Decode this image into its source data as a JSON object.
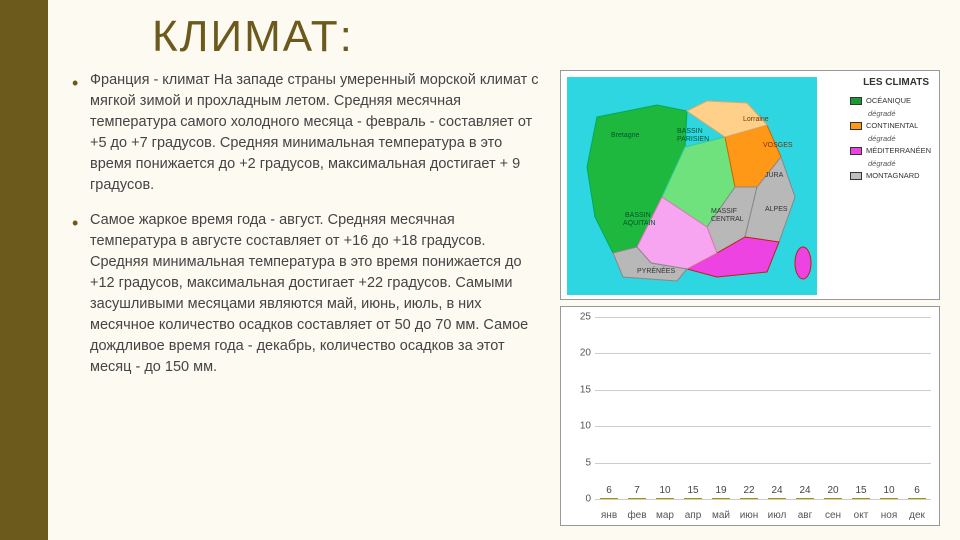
{
  "title": "КЛИМАТ:",
  "bullets": [
    "Франция - климат На западе страны умеренный морской климат с мягкой зимой и прохладным летом. Средняя месячная температура самого холодного месяца - февраль - составляет от +5 до +7 градусов. Средняя минимальная температура в это время понижается до +2 градусов, максимальная достигает + 9 градусов.",
    "Самое жаркое время года - август. Средняя месячная температура в августе составляет от +16 до +18 градусов. Средняя минимальная температура в это время понижается до +12 градусов, максимальная достигает +22 градусов. Самыми засушливыми месяцами являются май, июнь, июль, в них месячное количество осадков составляет от 50 до 70 мм. Самое дождливое время года - декабрь, количество осадков за этот месяц - до 150 мм."
  ],
  "map": {
    "title": "LES CLIMATS",
    "legend": [
      {
        "color": "#1a9933",
        "label": "OCÉANIQUE",
        "sub": "dégradé"
      },
      {
        "color": "#ff9817",
        "label": "CONTINENTAL",
        "sub": "dégradé"
      },
      {
        "color": "#ed43e2",
        "label": "MÉDITERRANÉEN",
        "sub": "dégradé"
      },
      {
        "color": "#c0c0c0",
        "label": "MONTAGNARD",
        "sub": ""
      }
    ],
    "regions": {
      "oceanic": "#1fb83e",
      "oceanic_deg": "#6fe27d",
      "continental": "#ff9817",
      "continental_deg": "#ffd08a",
      "mediterranean": "#ed43e2",
      "mediterranean_deg": "#f7a5f1",
      "mountain": "#b8b8b8",
      "sea": "#2dd6e0"
    },
    "labels": [
      "Bretagne",
      "BASSIN PARISIEN",
      "Lorraine",
      "VOSGES",
      "BASSIN AQUITAIN",
      "MASSIF CENTRAL",
      "ALPES",
      "PYRÉNÉES",
      "JURA",
      "Bourgogne"
    ]
  },
  "chart": {
    "type": "bar",
    "months": [
      "янв",
      "фев",
      "мар",
      "апр",
      "май",
      "июн",
      "июл",
      "авг",
      "сен",
      "окт",
      "ноя",
      "дек"
    ],
    "values": [
      6,
      7,
      10,
      15,
      19,
      22,
      24,
      24,
      20,
      15,
      10,
      6
    ],
    "ymax": 25,
    "ytick_step": 5,
    "bar_color_top": "#ffe94d",
    "bar_color_bottom": "#d4b800",
    "bar_border": "#aa9400",
    "grid_color": "#cccccc",
    "background": "#ffffff"
  },
  "theme": {
    "accent": "#6b5a1c",
    "slide_bg": "#fdfaf2"
  }
}
